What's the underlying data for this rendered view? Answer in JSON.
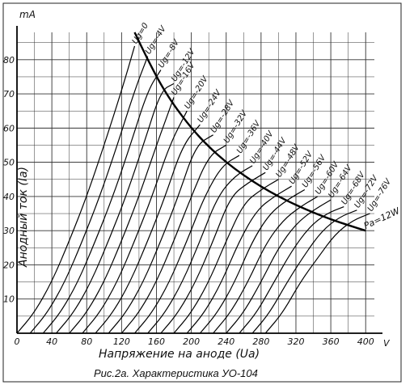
{
  "chart_data": {
    "type": "line",
    "title": "Рис.2а. Характеристика УО-104",
    "xlabel": "Напряжение на аноде (Uа)",
    "ylabel": "Анодный ток (Iа)",
    "x_unit": "V",
    "y_unit": "mA",
    "xlim": [
      0,
      410
    ],
    "ylim": [
      0,
      88
    ],
    "x_ticks": [
      0,
      40,
      80,
      120,
      160,
      200,
      240,
      280,
      320,
      360,
      400
    ],
    "y_ticks": [
      10,
      20,
      30,
      40,
      50,
      60,
      70,
      80
    ],
    "grid": true,
    "series": [
      {
        "name": "Ug=0",
        "x": [
          0,
          20,
          40,
          60,
          80,
          100,
          120,
          135
        ],
        "y": [
          0,
          6,
          15,
          27,
          40,
          55,
          71,
          84
        ]
      },
      {
        "name": "Ug=-4V",
        "x": [
          15,
          35,
          55,
          75,
          95,
          115,
          135,
          150
        ],
        "y": [
          0,
          6,
          15,
          27,
          40,
          55,
          71,
          81
        ]
      },
      {
        "name": "Ug=-8V",
        "x": [
          30,
          50,
          70,
          90,
          110,
          130,
          150,
          165
        ],
        "y": [
          0,
          6,
          15,
          27,
          40,
          55,
          71,
          77
        ]
      },
      {
        "name": "Ug=-12V",
        "x": [
          45,
          65,
          85,
          105,
          125,
          145,
          165,
          180
        ],
        "y": [
          0,
          6,
          15,
          27,
          40,
          55,
          71,
          73
        ]
      },
      {
        "name": "Ug=-16V",
        "x": [
          60,
          80,
          100,
          120,
          140,
          160,
          180
        ],
        "y": [
          0,
          6,
          15,
          27,
          40,
          55,
          69
        ]
      },
      {
        "name": "Ug=-20V",
        "x": [
          75,
          95,
          115,
          135,
          155,
          175,
          195
        ],
        "y": [
          0,
          6,
          15,
          27,
          40,
          55,
          65
        ]
      },
      {
        "name": "Ug=-24V",
        "x": [
          90,
          110,
          130,
          150,
          170,
          190,
          210
        ],
        "y": [
          0,
          6,
          15,
          27,
          40,
          55,
          61
        ]
      },
      {
        "name": "Ug=-28V",
        "x": [
          105,
          125,
          145,
          165,
          185,
          205,
          225
        ],
        "y": [
          0,
          6,
          15,
          27,
          40,
          55,
          58
        ]
      },
      {
        "name": "Ug=-32V",
        "x": [
          120,
          140,
          160,
          180,
          200,
          220,
          240
        ],
        "y": [
          0,
          6,
          15,
          27,
          40,
          52,
          55
        ]
      },
      {
        "name": "Ug=-36V",
        "x": [
          135,
          155,
          175,
          195,
          215,
          235,
          255
        ],
        "y": [
          0,
          6,
          15,
          27,
          40,
          49,
          52
        ]
      },
      {
        "name": "Ug=-40V",
        "x": [
          150,
          170,
          190,
          210,
          230,
          250,
          270
        ],
        "y": [
          0,
          6,
          15,
          27,
          40,
          46,
          49
        ]
      },
      {
        "name": "Ug=-44V",
        "x": [
          165,
          185,
          205,
          225,
          245,
          265,
          285
        ],
        "y": [
          0,
          6,
          15,
          27,
          40,
          44,
          47
        ]
      },
      {
        "name": "Ug=-48V",
        "x": [
          180,
          200,
          220,
          240,
          260,
          280,
          300
        ],
        "y": [
          0,
          6,
          15,
          27,
          38,
          42,
          45
        ]
      },
      {
        "name": "Ug=-52V",
        "x": [
          195,
          215,
          235,
          255,
          275,
          295,
          315
        ],
        "y": [
          0,
          6,
          15,
          27,
          36,
          40,
          43
        ]
      },
      {
        "name": "Ug=-56V",
        "x": [
          210,
          230,
          250,
          270,
          290,
          310,
          330
        ],
        "y": [
          0,
          6,
          15,
          27,
          35,
          39,
          42
        ]
      },
      {
        "name": "Ug=-60V",
        "x": [
          225,
          245,
          265,
          285,
          305,
          325,
          345
        ],
        "y": [
          0,
          6,
          15,
          26,
          33,
          37,
          40
        ]
      },
      {
        "name": "Ug=-64V",
        "x": [
          240,
          260,
          280,
          300,
          320,
          340,
          360
        ],
        "y": [
          0,
          6,
          15,
          25,
          32,
          36,
          39
        ]
      },
      {
        "name": "Ug=-68V",
        "x": [
          255,
          275,
          295,
          315,
          335,
          355,
          375
        ],
        "y": [
          0,
          6,
          15,
          24,
          31,
          35,
          37
        ]
      },
      {
        "name": "Ug=-72V",
        "x": [
          270,
          290,
          310,
          330,
          350,
          370,
          390
        ],
        "y": [
          0,
          6,
          15,
          23,
          30,
          34,
          36
        ]
      },
      {
        "name": "Ug=-76V",
        "x": [
          285,
          305,
          325,
          345,
          365,
          385,
          405
        ],
        "y": [
          0,
          6,
          15,
          22,
          29,
          33,
          35
        ]
      }
    ],
    "power_curve": {
      "name": "Pa=12W",
      "x": [
        135,
        150,
        165,
        180,
        200,
        220,
        240,
        260,
        280,
        300,
        320,
        340,
        360,
        380,
        400
      ],
      "y": [
        88,
        80,
        72.7,
        66.7,
        60,
        54.5,
        50,
        46.2,
        42.9,
        40,
        37.5,
        35.3,
        33.3,
        31.6,
        30
      ]
    },
    "curve_labels": [
      "Ug=0",
      "Ug=-4V",
      "Ug=-8V",
      "Ug=-12V",
      "Ug=-16V",
      "Ug=-20V",
      "Ug=-24V",
      "Ug=-28V",
      "Ug=-32V",
      "Ug=-36V",
      "Ug=-40V",
      "Ug=-44V",
      "Ug=-48V",
      "Ug=-52V",
      "Ug=-56V",
      "Ug=-60V",
      "Ug=-64V",
      "Ug=-68V",
      "Ug=-72V",
      "Ug=-76V"
    ],
    "power_label": "Pa=12W"
  }
}
